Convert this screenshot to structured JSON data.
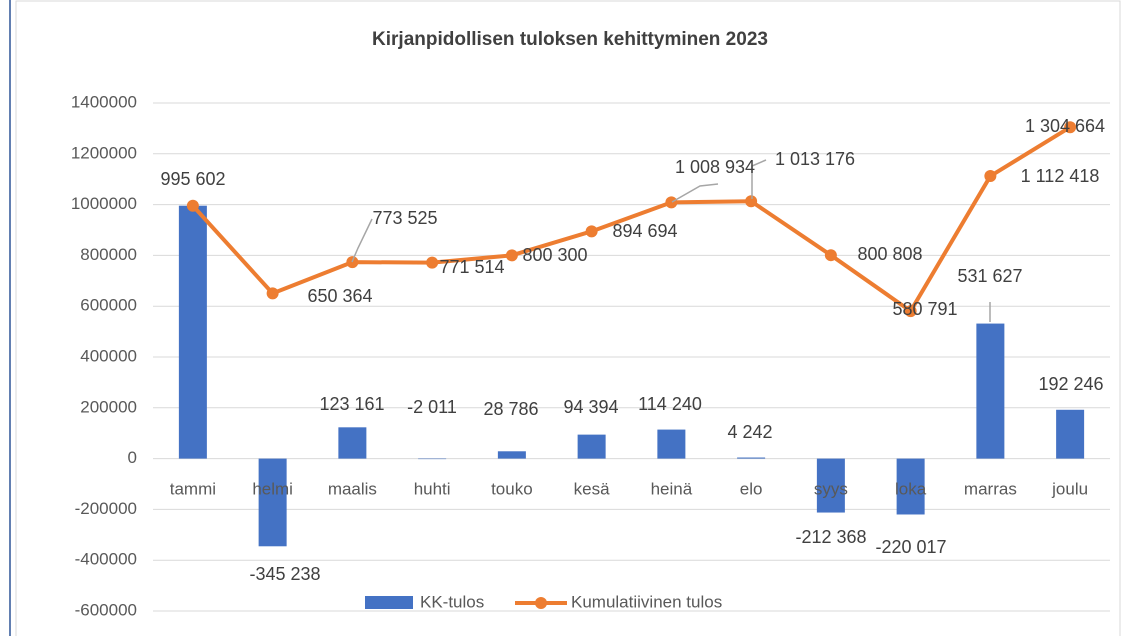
{
  "chart_data": {
    "type": "bar_line",
    "title": "Kirjanpidollisen tuloksen kehittyminen 2023",
    "categories": [
      "tammi",
      "helmi",
      "maalis",
      "huhti",
      "touko",
      "kesä",
      "heinä",
      "elo",
      "syys",
      "loka",
      "marras",
      "joulu"
    ],
    "series": [
      {
        "name": "KK-tulos",
        "type": "bar",
        "color": "#4472c4",
        "values": [
          995602,
          -345238,
          123161,
          -2011,
          28786,
          94394,
          114240,
          4242,
          -212368,
          -220017,
          531627,
          192246
        ],
        "value_labels": [
          null,
          "-345 238",
          "123 161",
          "-2 011",
          "28 786",
          "94 394",
          "114 240",
          "4 242",
          "-212 368",
          "-220 017",
          "531 627",
          "192 246"
        ]
      },
      {
        "name": "Kumulatiivinen tulos",
        "type": "line",
        "color": "#ed7d31",
        "values": [
          995602,
          650364,
          773525,
          771514,
          800300,
          894694,
          1008934,
          1013176,
          800808,
          580791,
          1112418,
          1304664
        ],
        "value_labels": [
          "995 602",
          "650 364",
          "773 525",
          "771 514",
          "800 300",
          "894 694",
          "1 008 934",
          "1 013 176",
          "800 808",
          "580 791",
          "1 112 418",
          "1 304 664"
        ]
      }
    ],
    "ylim": [
      -600000,
      1400000
    ],
    "yticks": [
      -600000,
      -400000,
      -200000,
      0,
      200000,
      400000,
      600000,
      800000,
      1000000,
      1200000,
      1400000
    ],
    "grid": true,
    "legend": "bottom"
  }
}
